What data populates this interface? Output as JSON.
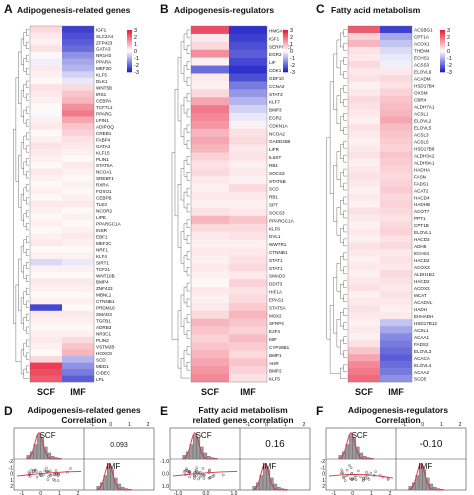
{
  "panels": {
    "A": {
      "letter": "A",
      "title": "Adipogenesis-related genes"
    },
    "B": {
      "letter": "B",
      "title": "Adipogenesis-regulators"
    },
    "C": {
      "letter": "C",
      "title": "Fatty acid metabolism"
    },
    "D": {
      "letter": "D",
      "title": "Adipogenesis-related genes\nCorrelation"
    },
    "E": {
      "letter": "E",
      "title": "Fatty acid metabolism\nrelated genes correlation"
    },
    "F": {
      "letter": "F",
      "title": "Adipogenesis-regulators\nCorrelation"
    }
  },
  "column_labels": {
    "scf": "SCF",
    "imf": "IMF"
  },
  "legend_ticks": [
    "3",
    "2",
    "1",
    "0",
    "-1",
    "-2",
    "-3"
  ],
  "colors": {
    "high": "#e8203a",
    "mid": "#ffffff",
    "low": "#1f22c8"
  },
  "heatmaps": {
    "A": {
      "genes": [
        "IGF1",
        "SLC2A4",
        "ZFP423",
        "GATA3",
        "NR1H3",
        "PPARA",
        "MEF2D",
        "KLF5",
        "DLK1",
        "WNT5B",
        "IRS1",
        "CEBPA",
        "TCF7L1",
        "PPARG",
        "LPIN1",
        "ADIPOQ",
        "CREB1",
        "FABP4",
        "GATA2",
        "KLF15",
        "PLIN1",
        "STAT5A",
        "NCOA1",
        "SREBF1",
        "RXRA",
        "FOXO1",
        "CEBPB",
        "TLE3",
        "NCOR2",
        "LIPE",
        "PPARGC1A",
        "INSR",
        "EBF1",
        "MEF2C",
        "NRF1",
        "KLF4",
        "SIRT1",
        "TCF21",
        "WNT10B",
        "BMP4",
        "ZNF423",
        "MBNL1",
        "CTNNB1",
        "PRDM16",
        "SMAD3",
        "TGFB1",
        "ADRB3",
        "NR3C1",
        "PLIN2",
        "VSTM2B",
        "HOXC8",
        "SCD",
        "MED1",
        "CIDEC",
        "LPL"
      ],
      "scf": [
        0.5,
        0.3,
        0.2,
        0.4,
        0.1,
        -0.2,
        0.3,
        0.2,
        0.1,
        0.4,
        0.3,
        0.2,
        0.1,
        -0.1,
        0.2,
        0.3,
        0.1,
        0.2,
        0.4,
        0.3,
        0.2,
        0.1,
        0.3,
        0.2,
        0.1,
        0.2,
        0.1,
        0.3,
        0.2,
        0.1,
        0.2,
        0.1,
        0.2,
        0.3,
        0.1,
        0.2,
        -0.5,
        0.2,
        0.1,
        0.3,
        0.2,
        0.1,
        0.2,
        -2.5,
        0.3,
        0.2,
        0.1,
        0.2,
        0.3,
        0.2,
        0.1,
        0.5,
        2.6,
        2.4,
        2.2
      ],
      "imf": [
        -2.6,
        -2.4,
        -2.2,
        -2.0,
        -1.5,
        -1.2,
        -1.0,
        -0.6,
        -0.3,
        0.5,
        0.8,
        1.0,
        1.5,
        1.8,
        1.2,
        0.8,
        0.6,
        0.4,
        0.3,
        0.2,
        0.1,
        0.3,
        0.2,
        0.1,
        0.2,
        0.1,
        0.2,
        0.3,
        0.1,
        0.2,
        0.1,
        0.2,
        0.3,
        0.2,
        0.1,
        0.2,
        -0.3,
        0.2,
        0.1,
        0.3,
        0.2,
        0.1,
        0.2,
        0.1,
        0.3,
        0.2,
        0.1,
        0.2,
        0.5,
        0.8,
        1.0,
        -1.0,
        -1.5,
        -1.8,
        -2.2
      ]
    },
    "B": {
      "genes": [
        "HMGA1",
        "IGF1",
        "SERPINE1",
        "EGR2",
        "LIF",
        "CDK1",
        "GDF10",
        "CCNA2",
        "STAT3",
        "KLF7",
        "BMP3",
        "EGR2",
        "CDKN1A",
        "NCOA2",
        "GADD45B",
        "LIFR",
        "IL6ST",
        "RB1",
        "SOCS3",
        "STAT5B",
        "SCD",
        "RB1",
        "SPT",
        "SOCS3",
        "PPARGC1A",
        "KLF6",
        "DVL1",
        "WWTR1",
        "CTNNB1",
        "STAT1",
        "STAT1",
        "SMAD3",
        "DDIT3",
        "HIF1A",
        "EPAS1",
        "STAT5A",
        "MSX2",
        "SFRP4",
        "E2F4",
        "MIF",
        "CYP26B1",
        "BMP1",
        "AHR",
        "BMP2",
        "KLF5"
      ],
      "scf": [
        2.4,
        0.3,
        0.5,
        1.5,
        0.2,
        -2.0,
        0.3,
        0.2,
        0.5,
        1.2,
        1.8,
        1.6,
        1.4,
        1.0,
        1.2,
        1.0,
        0.6,
        0.4,
        0.5,
        0.3,
        0.2,
        0.3,
        0.2,
        0.4,
        1.0,
        0.5,
        0.3,
        0.2,
        0.3,
        0.2,
        0.3,
        0.2,
        0.1,
        0.3,
        0.2,
        0.3,
        0.5,
        1.0,
        0.8,
        0.6,
        0.8,
        1.0,
        1.2,
        1.4,
        1.6
      ],
      "imf": [
        -2.8,
        -2.6,
        -2.4,
        -2.2,
        -2.5,
        -2.8,
        -2.4,
        -1.8,
        -1.4,
        -1.0,
        -0.6,
        -0.3,
        0.2,
        0.4,
        0.5,
        0.3,
        0.4,
        0.2,
        0.3,
        0.2,
        0.5,
        0.3,
        0.2,
        0.3,
        0.8,
        0.5,
        0.4,
        0.2,
        0.3,
        0.4,
        0.5,
        0.3,
        0.6,
        0.4,
        0.5,
        0.7,
        1.0,
        0.8,
        0.6,
        0.9,
        0.7,
        0.5,
        0.8,
        0.6,
        0.4
      ]
    },
    "C": {
      "genes": [
        "ACSBG1",
        "CPT1A",
        "ACOX1",
        "THEM4",
        "ECHS1",
        "ACSS3",
        "ELOVL6",
        "ACADM",
        "HSD17B4",
        "OXSM",
        "CBR4",
        "ALDH7A1",
        "ACSL1",
        "ELOVL2",
        "ELOVL5",
        "ACSL3",
        "ACSL5",
        "HSD17B8",
        "ALDH3A2",
        "ALDH9A1",
        "HADHA",
        "FASN",
        "FADS1",
        "ACAT2",
        "HACD4",
        "HADHB",
        "ACOT7",
        "PPT1",
        "CPT1B",
        "ELOVL1",
        "HACD3",
        "ADH5",
        "ECHS1",
        "HACD2",
        "ACOX3",
        "ALDH1B1",
        "HACD2",
        "ACOX3",
        "MCAT",
        "ACADVL",
        "HADH",
        "EHHADH",
        "HSD17B12",
        "ACSL1",
        "ACAA1",
        "FADS2",
        "ELOVL3",
        "ACACA",
        "ELOVL4",
        "ACAA2",
        "SCD5"
      ],
      "scf": [
        2.2,
        0.6,
        1.0,
        0.4,
        0.3,
        0.5,
        0.3,
        0.4,
        0.2,
        0.3,
        0.5,
        0.4,
        0.3,
        0.2,
        0.4,
        0.3,
        0.2,
        0.3,
        0.4,
        0.2,
        0.3,
        0.4,
        0.3,
        0.2,
        0.3,
        0.2,
        0.4,
        0.3,
        0.2,
        0.3,
        0.2,
        0.4,
        0.3,
        0.2,
        0.3,
        0.2,
        0.3,
        0.4,
        0.2,
        0.3,
        0.4,
        0.3,
        0.2,
        0.3,
        0.2,
        0.4,
        0.8,
        1.2,
        1.6,
        1.8,
        2.0
      ],
      "imf": [
        -2.6,
        -1.2,
        -0.8,
        -0.5,
        -0.3,
        -0.2,
        0.3,
        0.5,
        0.4,
        0.6,
        0.8,
        0.9,
        1.0,
        1.2,
        0.9,
        0.8,
        0.7,
        0.6,
        0.8,
        0.7,
        0.6,
        0.5,
        0.6,
        0.7,
        0.5,
        0.6,
        0.5,
        0.4,
        0.5,
        0.6,
        0.4,
        0.5,
        0.3,
        0.4,
        0.3,
        0.5,
        0.4,
        0.3,
        0.4,
        0.3,
        0.2,
        0.3,
        -0.8,
        -1.2,
        -1.6,
        -1.8,
        -2.0,
        -2.2,
        -2.0,
        -1.8,
        -1.5
      ]
    }
  },
  "correlations": {
    "D": {
      "label": "SCF",
      "label2": "IMF",
      "value": "0.093",
      "top_ticks": [
        "-1",
        "0",
        "1",
        "2"
      ],
      "bottom_ticks": [
        "-1",
        "0",
        "1",
        "2"
      ],
      "side_ticks": [
        "-2",
        "-1",
        "0",
        "1",
        "2"
      ]
    },
    "E": {
      "label": "SCF",
      "label2": "IMF",
      "value": "0.16",
      "top_ticks": [
        "-1",
        "0",
        "1",
        "2"
      ],
      "bottom_ticks": [
        "-1.0",
        "0.0",
        "1.0"
      ],
      "side_ticks": [
        "-1.0",
        "0.0",
        "1.0"
      ]
    },
    "F": {
      "label": "SCF",
      "label2": "IMF",
      "value": "-0.10",
      "top_ticks": [
        "-1",
        "0",
        "1",
        "2"
      ],
      "bottom_ticks": [
        "-1",
        "0",
        "1",
        "2"
      ],
      "side_ticks": [
        "-2",
        "-1",
        "0",
        "1",
        "2"
      ]
    }
  }
}
